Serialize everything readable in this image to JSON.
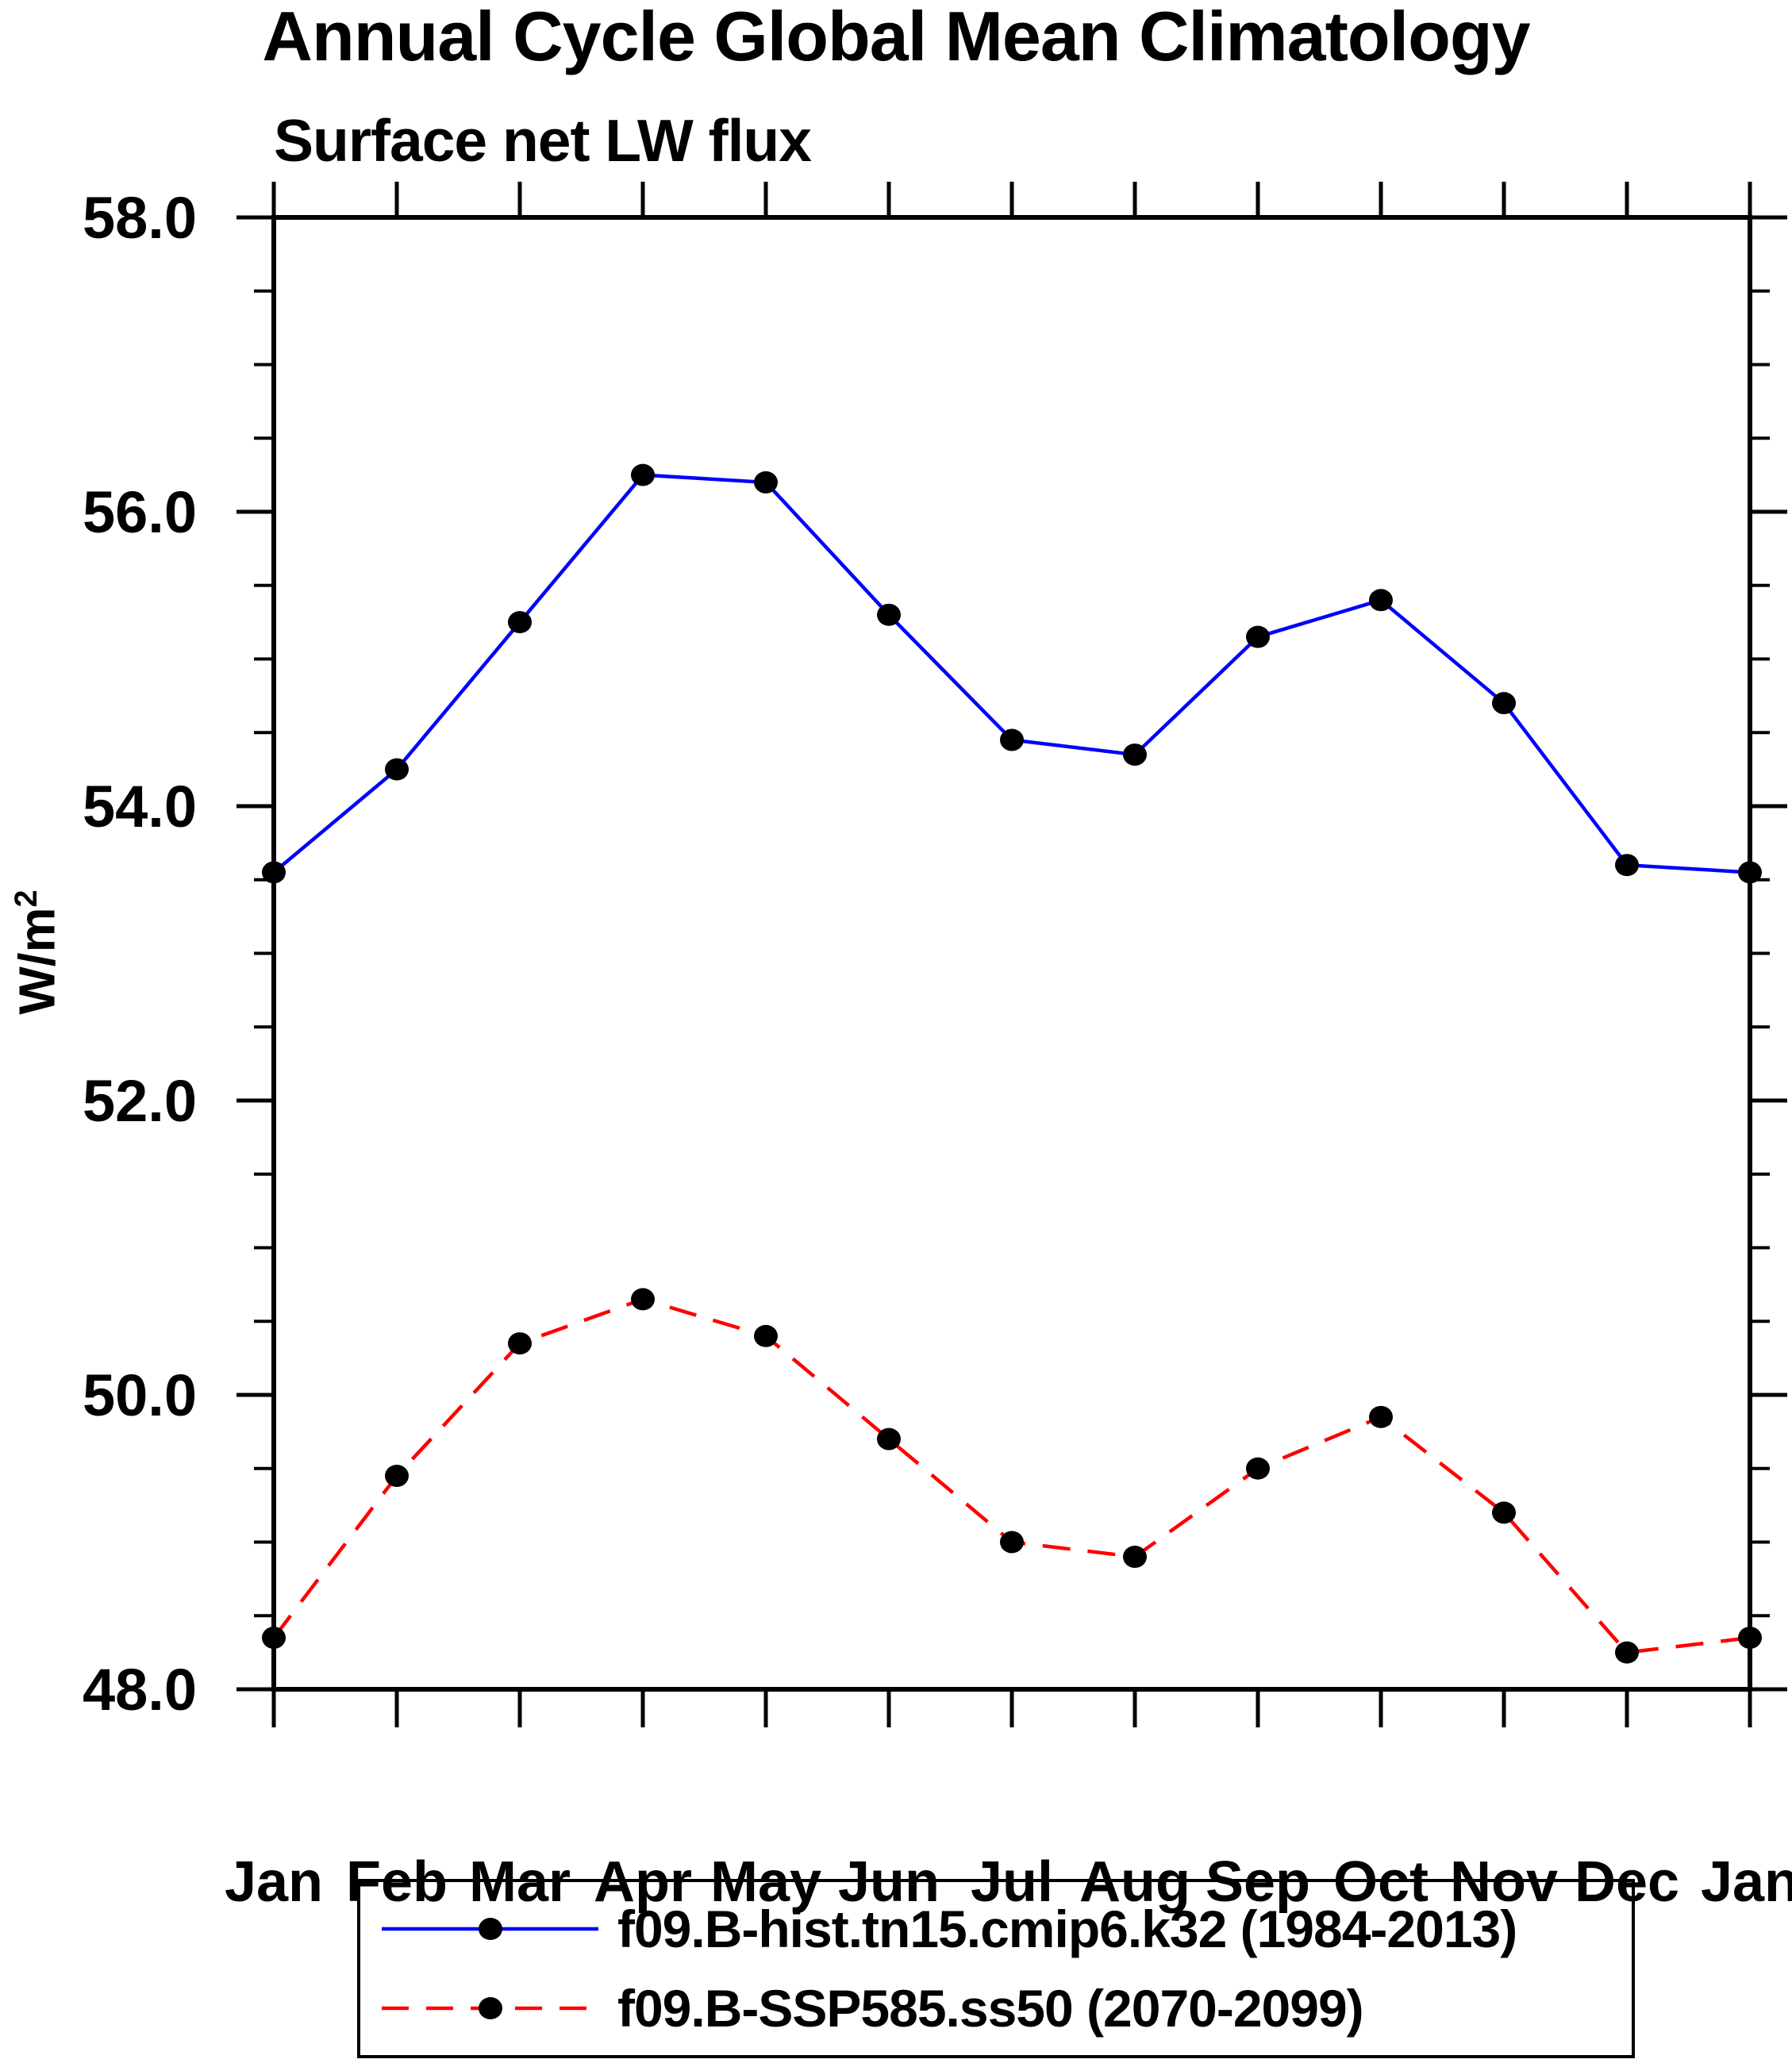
{
  "chart_data": {
    "type": "line",
    "title": "Annual Cycle Global Mean Climatology",
    "subtitle": "Surface net LW flux",
    "ylabel": "W/m",
    "ylabel_superscript": "2",
    "categories": [
      "Jan",
      "Feb",
      "Mar",
      "Apr",
      "May",
      "Jun",
      "Jul",
      "Aug",
      "Sep",
      "Oct",
      "Nov",
      "Dec",
      "Jan"
    ],
    "ylim": [
      48.0,
      58.0
    ],
    "ytick_interval": 2.0,
    "ytick_minor_interval": 0.5,
    "ytick_labels": [
      "48.0",
      "50.0",
      "52.0",
      "54.0",
      "56.0",
      "58.0"
    ],
    "grid": false,
    "legend_position": "bottom",
    "axis_color": "#000000",
    "marker_color": "#000000",
    "series": [
      {
        "name": "f09.B-hist.tn15.cmip6.k32 (1984-2013)",
        "color": "#0000ff",
        "line_style": "solid",
        "marker": "circle",
        "values": [
          53.55,
          54.25,
          55.25,
          56.25,
          56.2,
          55.3,
          54.45,
          54.35,
          55.15,
          55.4,
          54.7,
          53.6,
          53.55
        ]
      },
      {
        "name": "f09.B-SSP585.ss50 (2070-2099)",
        "color": "#ff0000",
        "line_style": "dashed",
        "marker": "circle",
        "values": [
          48.35,
          49.45,
          50.35,
          50.65,
          50.4,
          49.7,
          49.0,
          48.9,
          49.5,
          49.85,
          49.2,
          48.25,
          48.35
        ]
      }
    ]
  }
}
